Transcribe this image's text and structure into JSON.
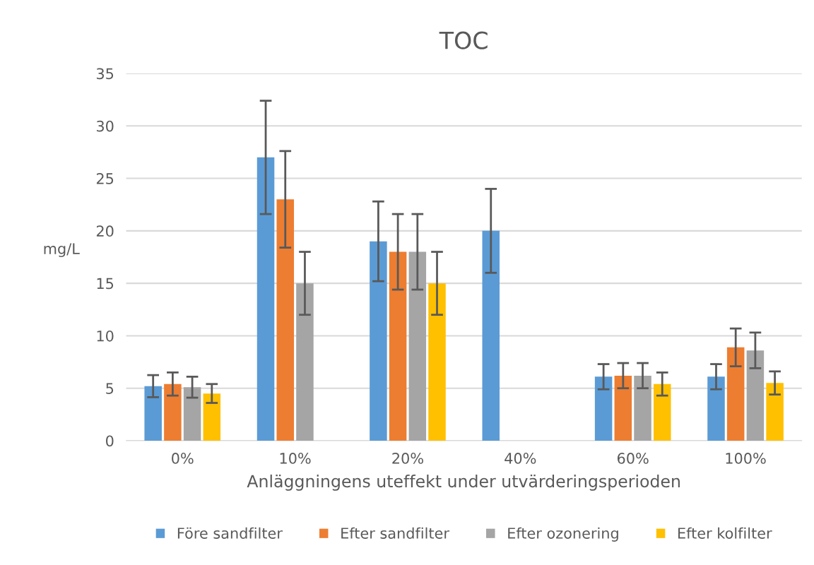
{
  "chart_data": {
    "type": "bar",
    "title": "TOC",
    "xlabel": "Anläggningens uteffekt under utvärderingsperioden",
    "ylabel": "mg/L",
    "categories": [
      "0%",
      "10%",
      "20%",
      "40%",
      "60%",
      "100%"
    ],
    "series": [
      {
        "name": "Före sandfilter",
        "color": "#5b9bd5",
        "values": [
          5.2,
          27,
          19,
          20,
          6.1,
          6.1
        ],
        "errors": [
          1.05,
          5.4,
          3.8,
          4,
          1.2,
          1.2
        ]
      },
      {
        "name": "Efter sandfilter",
        "color": "#ed7d31",
        "values": [
          5.4,
          23,
          18,
          0,
          6.2,
          8.9
        ],
        "errors": [
          1.1,
          4.6,
          3.6,
          null,
          1.2,
          1.8
        ]
      },
      {
        "name": "Efter ozonering",
        "color": "#a5a5a5",
        "values": [
          5.1,
          15,
          18,
          0,
          6.2,
          8.6
        ],
        "errors": [
          1.0,
          3,
          3.6,
          null,
          1.2,
          1.7
        ]
      },
      {
        "name": "Efter kolfilter",
        "color": "#ffc000",
        "values": [
          4.5,
          0,
          15,
          0,
          5.4,
          5.5
        ],
        "errors": [
          0.9,
          null,
          3,
          null,
          1.1,
          1.1
        ]
      }
    ],
    "ylim": [
      0,
      35
    ],
    "yticks": [
      0,
      5,
      10,
      15,
      20,
      25,
      30,
      35
    ],
    "grid": "y",
    "legend": "bottom"
  }
}
